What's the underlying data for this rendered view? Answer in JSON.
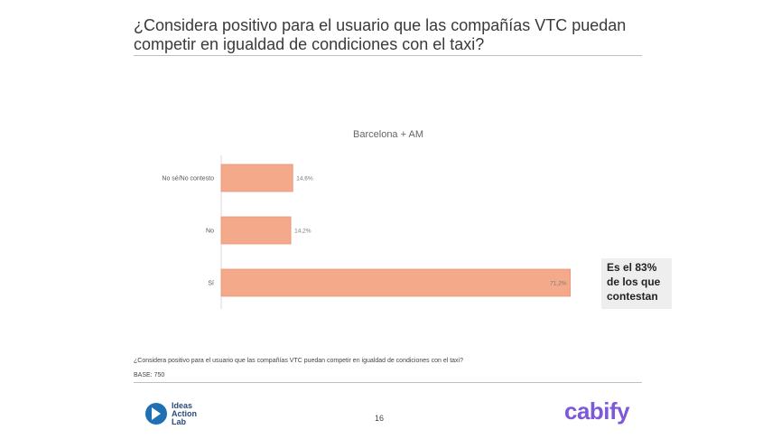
{
  "header": {
    "title": "¿Considera positivo para el usuario que las compañías VTC puedan competir en igualdad de condiciones con el taxi?"
  },
  "chart_data": {
    "type": "bar",
    "orientation": "horizontal",
    "title": "Barcelona + AM",
    "categories": [
      "No sé/No contesto",
      "No",
      "Sí"
    ],
    "values": [
      14.6,
      14.2,
      71.2
    ],
    "value_labels": [
      "14,6%",
      "14,2%",
      "71,2%"
    ],
    "xlim": [
      0,
      100
    ],
    "grid": false,
    "bar_color": "#f4a98b"
  },
  "callout": {
    "text": "Es el 83% de los que contestan"
  },
  "footer": {
    "question": "¿Considera positivo para el usuario que las compañías VTC puedan competir en igualdad de condiciones con el taxi?",
    "base": "BASE: 750",
    "page_number": "16",
    "logo_left": [
      "Ideas",
      "Action",
      "Lab"
    ],
    "logo_right": "cabify"
  }
}
